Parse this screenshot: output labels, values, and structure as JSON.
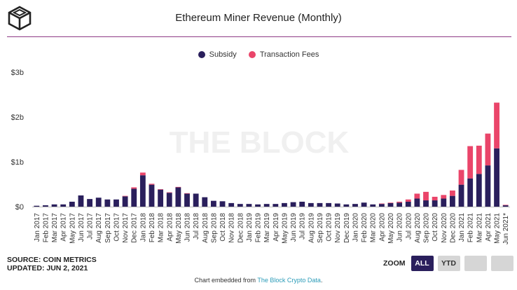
{
  "header": {
    "title": "Ethereum Miner Revenue (Monthly)",
    "logo_icon": "cube-logo-icon"
  },
  "colors": {
    "subsidy": "#2a1f5c",
    "fees": "#ea456a",
    "rule": "#8e3a85",
    "watermark": "#f1f1f1",
    "grid": "#e5e5e5"
  },
  "watermark": "THE BLOCK",
  "footer": {
    "source": "SOURCE: COIN METRICS",
    "updated": "UPDATED: JUN 2, 2021",
    "embed_prefix": "Chart embedded from ",
    "embed_link": "The Block Crypto Data",
    "embed_suffix": "."
  },
  "zoom": {
    "label": "ZOOM",
    "buttons": [
      "ALL",
      "YTD",
      "",
      ""
    ],
    "active": "ALL"
  },
  "chart_data": {
    "type": "bar",
    "stacked": true,
    "title": "Ethereum Miner Revenue (Monthly)",
    "yticks": [
      "$0",
      "$1b",
      "$2b",
      "$3b"
    ],
    "ytick_values": [
      0,
      1,
      2,
      3
    ],
    "ylim": [
      0,
      3
    ],
    "y_unit": "billions USD",
    "grid": false,
    "legend_position": "top-center",
    "categories": [
      "Jan 2017",
      "Feb 2017",
      "Mar 2017",
      "Apr 2017",
      "May 2017",
      "Jun 2017",
      "Jul 2017",
      "Aug 2017",
      "Sep 2017",
      "Oct 2017",
      "Nov 2017",
      "Dec 2017",
      "Jan 2018",
      "Feb 2018",
      "Mar 2018",
      "Apr 2018",
      "May 2018",
      "Jun 2018",
      "Jul 2018",
      "Aug 2018",
      "Sep 2018",
      "Oct 2018",
      "Nov 2018",
      "Dec 2018",
      "Jan 2019",
      "Feb 2019",
      "Mar 2019",
      "Apr 2019",
      "May 2019",
      "Jun 2019",
      "Jul 2019",
      "Aug 2019",
      "Sep 2019",
      "Oct 2019",
      "Nov 2019",
      "Dec 2019",
      "Jan 2020",
      "Feb 2020",
      "Mar 2020",
      "Apr 2020",
      "May 2020",
      "Jun 2020",
      "Jul 2020",
      "Aug 2020",
      "Sep 2020",
      "Oct 2020",
      "Nov 2020",
      "Dec 2020",
      "Jan 2021",
      "Feb 2021",
      "Mar 2021",
      "Apr 2021",
      "May 2021",
      "Jun 2021*"
    ],
    "series": [
      {
        "name": "Subsidy",
        "values": [
          0.02,
          0.03,
          0.05,
          0.05,
          0.11,
          0.25,
          0.17,
          0.2,
          0.16,
          0.16,
          0.23,
          0.4,
          0.7,
          0.49,
          0.38,
          0.31,
          0.43,
          0.29,
          0.29,
          0.21,
          0.13,
          0.12,
          0.08,
          0.06,
          0.06,
          0.05,
          0.06,
          0.06,
          0.08,
          0.1,
          0.11,
          0.08,
          0.08,
          0.08,
          0.07,
          0.05,
          0.06,
          0.09,
          0.05,
          0.06,
          0.08,
          0.09,
          0.11,
          0.18,
          0.14,
          0.14,
          0.18,
          0.24,
          0.49,
          0.63,
          0.73,
          0.92,
          1.3,
          0.03
        ]
      },
      {
        "name": "Transaction Fees",
        "values": [
          0.0,
          0.0,
          0.0,
          0.0,
          0.0,
          0.0,
          0.0,
          0.0,
          0.0,
          0.0,
          0.01,
          0.03,
          0.06,
          0.02,
          0.01,
          0.01,
          0.01,
          0.01,
          0.0,
          0.0,
          0.0,
          0.0,
          0.0,
          0.0,
          0.0,
          0.0,
          0.0,
          0.0,
          0.0,
          0.0,
          0.0,
          0.0,
          0.0,
          0.0,
          0.0,
          0.0,
          0.0,
          0.0,
          0.0,
          0.01,
          0.01,
          0.02,
          0.05,
          0.11,
          0.19,
          0.08,
          0.08,
          0.12,
          0.33,
          0.72,
          0.63,
          0.71,
          1.02,
          0.01
        ]
      }
    ]
  }
}
